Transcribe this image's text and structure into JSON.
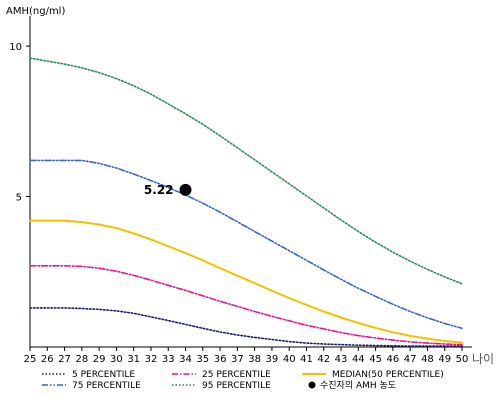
{
  "chart_data": {
    "type": "line",
    "ylabel": "AMH(ng/ml)",
    "xlabel": "나이",
    "x": [
      25,
      26,
      27,
      28,
      29,
      30,
      31,
      32,
      33,
      34,
      35,
      36,
      37,
      38,
      39,
      40,
      41,
      42,
      43,
      44,
      45,
      46,
      47,
      48,
      49,
      50
    ],
    "xlim": [
      25,
      50
    ],
    "ylim": [
      0,
      11
    ],
    "yticks": [
      5,
      10
    ],
    "grid": false,
    "legend_position": "bottom",
    "series": [
      {
        "name": "5 PERCENTILE",
        "color": "#1a1a6e",
        "style": "dotted",
        "values": [
          1.3,
          1.3,
          1.3,
          1.28,
          1.25,
          1.2,
          1.12,
          1.0,
          0.88,
          0.75,
          0.62,
          0.5,
          0.4,
          0.32,
          0.25,
          0.18,
          0.13,
          0.1,
          0.08,
          0.06,
          0.05,
          0.04,
          0.03,
          0.03,
          0.03,
          0.03
        ]
      },
      {
        "name": "25 PERCENTILE",
        "color": "#e6198c",
        "style": "dashdot",
        "values": [
          2.7,
          2.7,
          2.7,
          2.68,
          2.62,
          2.52,
          2.38,
          2.22,
          2.05,
          1.88,
          1.7,
          1.52,
          1.35,
          1.18,
          1.02,
          0.87,
          0.72,
          0.6,
          0.48,
          0.38,
          0.3,
          0.23,
          0.17,
          0.13,
          0.1,
          0.08
        ]
      },
      {
        "name": "MEDIAN(50 PERCENTILE)",
        "color": "#f2c200",
        "style": "solid",
        "values": [
          4.2,
          4.2,
          4.2,
          4.15,
          4.07,
          3.95,
          3.78,
          3.57,
          3.35,
          3.12,
          2.88,
          2.62,
          2.37,
          2.12,
          1.87,
          1.63,
          1.4,
          1.18,
          0.98,
          0.8,
          0.63,
          0.49,
          0.37,
          0.28,
          0.2,
          0.15
        ]
      },
      {
        "name": "75 PERCENTILE",
        "color": "#3a62c8",
        "style": "dashdotdot",
        "values": [
          6.2,
          6.2,
          6.2,
          6.2,
          6.1,
          5.95,
          5.75,
          5.53,
          5.3,
          5.05,
          4.78,
          4.48,
          4.16,
          3.84,
          3.52,
          3.2,
          2.88,
          2.56,
          2.25,
          1.95,
          1.68,
          1.42,
          1.18,
          0.97,
          0.78,
          0.62
        ]
      },
      {
        "name": "95 PERCENTILE",
        "color": "#2a8a5a",
        "style": "dotted",
        "values": [
          9.6,
          9.5,
          9.4,
          9.28,
          9.12,
          8.92,
          8.68,
          8.4,
          8.08,
          7.75,
          7.4,
          7.02,
          6.62,
          6.22,
          5.82,
          5.42,
          5.02,
          4.62,
          4.22,
          3.84,
          3.48,
          3.15,
          2.85,
          2.58,
          2.33,
          2.1
        ]
      }
    ],
    "points": [
      {
        "name": "수진자의 AMH 농도",
        "x": 34,
        "y": 5.22,
        "label": "5.22",
        "color": "#000000"
      }
    ]
  }
}
